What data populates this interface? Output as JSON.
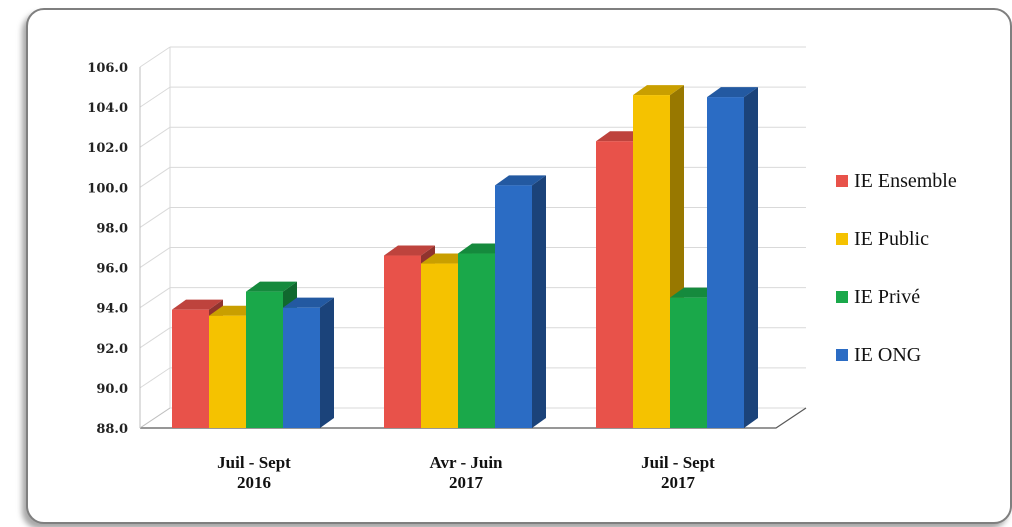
{
  "chart_data": {
    "type": "bar",
    "categories": [
      [
        "Juil - Sept",
        "2016"
      ],
      [
        "Avr - Juin",
        "2017"
      ],
      [
        "Juil - Sept",
        "2017"
      ]
    ],
    "series": [
      {
        "name": "IE Ensemble",
        "color": "#e8524a",
        "values": [
          93.9,
          96.6,
          102.3
        ]
      },
      {
        "name": "IE Public",
        "color": "#f5c200",
        "values": [
          93.6,
          96.2,
          104.6
        ]
      },
      {
        "name": "IE Privé",
        "color": "#1aa84a",
        "values": [
          94.8,
          96.7,
          94.5
        ]
      },
      {
        "name": "IE ONG",
        "color": "#2b6cc4",
        "values": [
          94.0,
          100.1,
          104.5
        ]
      }
    ],
    "ylim": [
      88.0,
      106.0
    ],
    "yticks": [
      "88.0",
      "90.0",
      "92.0",
      "94.0",
      "96.0",
      "98.0",
      "100.0",
      "102.0",
      "104.0",
      "106.0"
    ],
    "grid": true,
    "legend_position": "right"
  }
}
